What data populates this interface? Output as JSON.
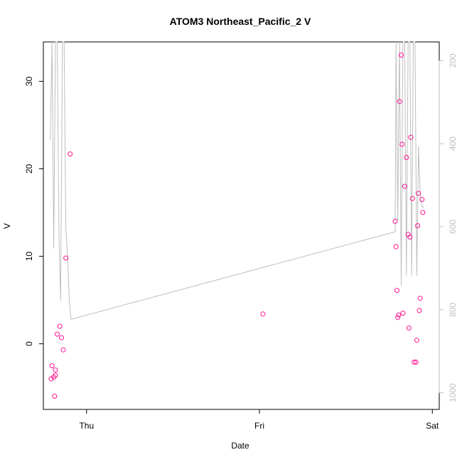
{
  "chart_data": {
    "type": "scatter",
    "title": "ATOM3 Northeast_Pacific_2 V",
    "xlabel": "Date",
    "ylabel": "V",
    "x_ticks": [
      {
        "label": "Thu",
        "x": 1.0
      },
      {
        "label": "Fri",
        "x": 2.0
      },
      {
        "label": "Sat",
        "x": 3.0
      }
    ],
    "xlim": [
      0.75,
      3.04
    ],
    "ylim": [
      -7.5,
      34.5
    ],
    "y_ticks": [
      0,
      10,
      20,
      30
    ],
    "right_axis": {
      "label": "",
      "reversed": true,
      "ylim": [
        1040,
        155
      ],
      "ticks": [
        200,
        400,
        600,
        800,
        1000
      ]
    },
    "colors": {
      "points": "#ff1493",
      "profile_line": "#bebebe",
      "axis": "#000000",
      "right_axis": "#bfbfbf"
    },
    "series": [
      {
        "values_name": "points",
        "x": [
          0.795,
          0.8,
          0.81,
          0.815,
          0.82,
          0.82,
          0.83,
          0.845,
          0.855,
          0.865,
          0.88,
          0.905,
          2.02,
          2.785,
          2.79,
          2.795,
          2.8,
          2.805,
          2.81,
          2.82,
          2.825,
          2.83,
          2.84,
          2.85,
          2.86,
          2.865,
          2.87,
          2.875,
          2.885,
          2.895,
          2.905,
          2.91,
          2.915,
          2.92,
          2.925,
          2.93,
          2.94,
          2.945
        ],
        "y": [
          -4.0,
          -2.5,
          -3.8,
          -6.0,
          -3.6,
          -3.0,
          1.1,
          2.0,
          0.7,
          -0.7,
          9.8,
          21.7,
          3.4,
          14.0,
          11.1,
          6.1,
          3.0,
          3.3,
          27.7,
          33.0,
          22.8,
          3.5,
          18.0,
          21.3,
          12.5,
          1.8,
          12.2,
          23.6,
          16.6,
          -2.1,
          -2.1,
          0.4,
          13.5,
          17.2,
          3.8,
          5.2,
          16.5,
          15.0
        ]
      },
      {
        "values_name": "profile_line",
        "x": [
          0.79,
          0.8,
          0.81,
          0.82,
          0.83,
          0.84,
          0.85,
          0.86,
          0.87,
          0.88,
          0.89,
          0.9,
          0.91,
          2.785,
          2.79,
          2.8,
          2.81,
          2.82,
          2.83,
          2.84,
          2.85,
          2.86,
          2.87,
          2.88,
          2.89,
          2.9,
          2.91,
          2.92,
          2.93,
          2.94,
          2.95
        ],
        "y": [
          23.3,
          34.5,
          10.9,
          34.5,
          34.5,
          12.5,
          4.9,
          34.5,
          34.5,
          13.3,
          9.9,
          4.8,
          2.8,
          12.8,
          34.5,
          14.1,
          34.5,
          6.6,
          34.5,
          34.5,
          7.8,
          34.5,
          34.5,
          7.8,
          34.5,
          34.5,
          7.8,
          22.6,
          17.2,
          15.7,
          15.5
        ]
      }
    ]
  }
}
